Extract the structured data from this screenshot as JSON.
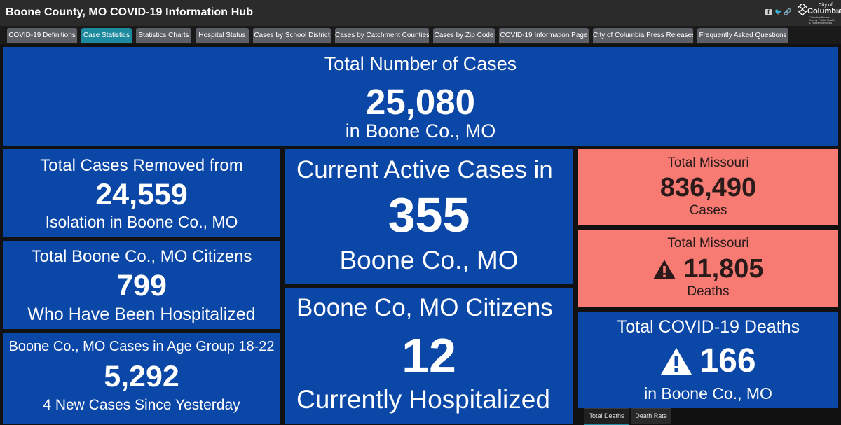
{
  "header": {
    "title": "Boone County, MO COVID-19 Information Hub",
    "social": {
      "facebook": "f",
      "twitter": "🐦",
      "link": "🔗"
    },
    "logo": {
      "city_of": "City of",
      "name": "Columbia",
      "subtitle": "Columbia/Boone County Public Health & Human Services"
    }
  },
  "tabs": [
    {
      "label": "COVID-19 Definitions"
    },
    {
      "label": "Case Statistics"
    },
    {
      "label": "Statistics Charts"
    },
    {
      "label": "Hospital Status"
    },
    {
      "label": "Cases by School District"
    },
    {
      "label": "Cases by Catchment Counties"
    },
    {
      "label": "Cases by Zip Code"
    },
    {
      "label": "COVID-19 Information Page"
    },
    {
      "label": "City of Columbia Press Releases"
    },
    {
      "label": "Frequently Asked Questions"
    }
  ],
  "active_tab": "Case Statistics",
  "colors": {
    "card_blue": "#0b47a6",
    "card_red": "#f77b73",
    "active_tab": "#1e8a9e",
    "tab": "#5d6066"
  },
  "cards": {
    "total_cases": {
      "label": "Total Number of Cases",
      "value": "25,080",
      "sub": "in Boone Co., MO"
    },
    "removed": {
      "label": "Total Cases Removed from",
      "value": "24,559",
      "sub": "Isolation in Boone Co., MO"
    },
    "hospitalized_total": {
      "label": "Total Boone Co., MO Citizens",
      "value": "799",
      "sub": "Who Have Been Hospitalized"
    },
    "age_group": {
      "label": "Boone Co., MO Cases in Age Group 18-22",
      "value": "5,292",
      "sub": "4 New Cases Since Yesterday"
    },
    "active": {
      "label": "Current Active Cases in",
      "value": "355",
      "sub": "Boone Co., MO"
    },
    "currently_hospitalized": {
      "label": "Boone Co, MO Citizens",
      "value": "12",
      "sub": "Currently Hospitalized"
    },
    "missouri_cases": {
      "label": "Total Missouri",
      "value": "836,490",
      "sub": "Cases"
    },
    "missouri_deaths": {
      "label": "Total Missouri",
      "value": "11,805",
      "sub": "Deaths"
    },
    "boone_deaths": {
      "label": "Total COVID-19 Deaths",
      "value": "166",
      "sub": "in Boone Co., MO"
    }
  },
  "bottom_tabs": [
    {
      "label": "Total Deaths"
    },
    {
      "label": "Death Rate"
    }
  ]
}
